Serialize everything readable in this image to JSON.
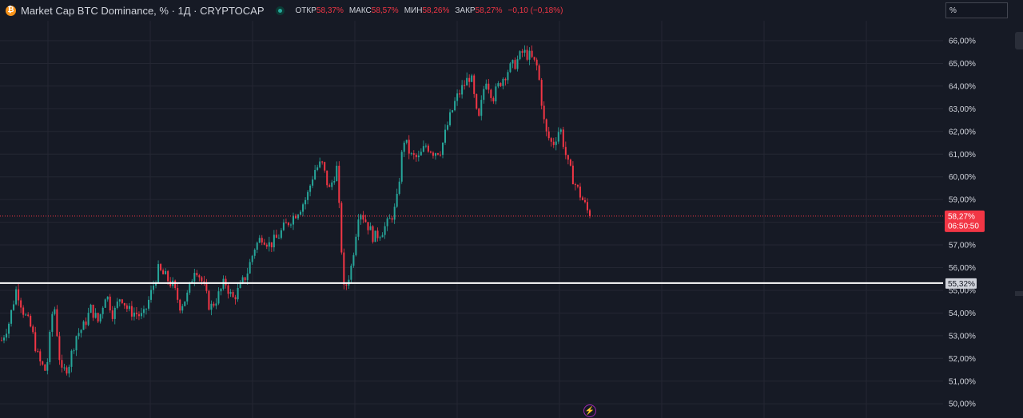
{
  "header": {
    "symbol_icon": "bitcoin-icon",
    "title": "Market Cap BTC Dominance, % · 1Д · CRYPTOCAP",
    "ohlc": [
      {
        "label": "ОТКР",
        "value": "58,37%"
      },
      {
        "label": "МАКС",
        "value": "58,57%"
      },
      {
        "label": "МИН",
        "value": "58,26%"
      },
      {
        "label": "ЗАКР",
        "value": "58,27%"
      }
    ],
    "change": "−0,10 (−0,18%)"
  },
  "scale_input": {
    "value": "%"
  },
  "price_axis": {
    "tick_labels": [
      "66,00%",
      "65,00%",
      "64,00%",
      "63,00%",
      "62,00%",
      "61,00%",
      "60,00%",
      "59,00%",
      "57,00%",
      "56,00%",
      "55,00%",
      "54,00%",
      "53,00%",
      "52,00%",
      "51,00%",
      "50,00%"
    ]
  },
  "last_price": {
    "value": "58,27%",
    "countdown": "06:50:50",
    "level": 58.27
  },
  "horizontal_line": {
    "value": "55,32%",
    "level": 55.32
  },
  "chart_data": {
    "type": "candlestick",
    "title": "Market Cap BTC Dominance, % · 1Д · CRYPTOCAP",
    "ylim": [
      49.8,
      66.3
    ],
    "y_unit": "%",
    "grid": true,
    "close_series": [
      52.8,
      53.6,
      55.1,
      54.0,
      53.3,
      51.9,
      51.4,
      54.6,
      51.3,
      51.7,
      53.0,
      53.4,
      54.2,
      53.6,
      54.9,
      53.9,
      54.8,
      54.1,
      54.0,
      53.8,
      54.8,
      55.9,
      55.6,
      55.2,
      54.3,
      54.8,
      56.1,
      55.3,
      54.2,
      54.7,
      55.4,
      54.6,
      55.1,
      55.8,
      56.9,
      57.4,
      57.0,
      57.3,
      57.8,
      58.2,
      58.6,
      59.1,
      60.3,
      60.6,
      59.4,
      60.4,
      54.9,
      56.1,
      58.6,
      58.0,
      57.3,
      57.6,
      58.0,
      58.7,
      61.7,
      60.9,
      60.8,
      61.4,
      61.1,
      61.2,
      62.4,
      63.4,
      64.0,
      64.5,
      62.3,
      64.4,
      63.5,
      64.2,
      64.7,
      65.0,
      65.5,
      65.3,
      64.8,
      62.0,
      61.4,
      62.2,
      60.6,
      59.7,
      59.0,
      58.27
    ],
    "colors": {
      "up": "#26a69a",
      "down": "#f23645",
      "grid": "#242733",
      "hline": "#ffffff",
      "last_price_bg": "#f23645",
      "hline_label_bg": "#d1d4dc"
    }
  }
}
